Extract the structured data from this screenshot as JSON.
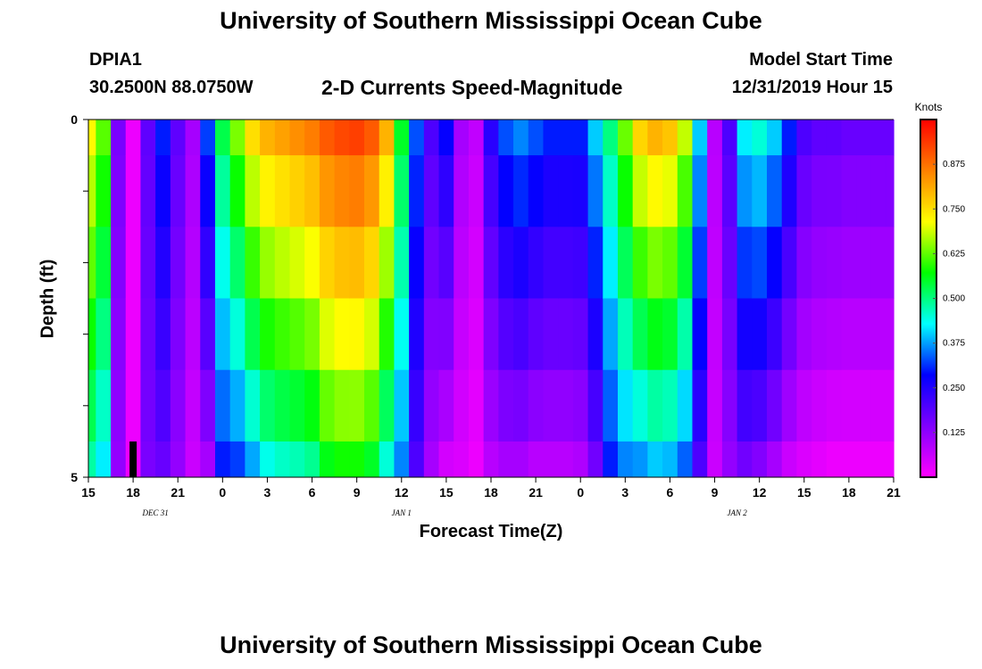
{
  "header": {
    "title": "University of Southern Mississippi Ocean Cube",
    "station_id": "DPIA1",
    "coords": "30.2500N 88.0750W",
    "subtitle": "2-D Currents Speed-Magnitude",
    "model_start_label": "Model Start Time",
    "model_start_value": "12/31/2019 Hour 15"
  },
  "footer": {
    "title": "University of Southern Mississippi Ocean Cube"
  },
  "chart_data": {
    "type": "heatmap",
    "title": "2-D Currents Speed-Magnitude",
    "xlabel": "Forecast Time(Z)",
    "ylabel": "Depth (ft)",
    "x_hours_start": 0,
    "x_hours_end": 54,
    "x_ticks": [
      "15",
      "18",
      "21",
      "0",
      "3",
      "6",
      "9",
      "12",
      "15",
      "18",
      "21",
      "0",
      "3",
      "6",
      "9",
      "12",
      "15",
      "18",
      "21"
    ],
    "date_labels": [
      {
        "text": "DEC 31",
        "hour": 4.5
      },
      {
        "text": "JAN 1",
        "hour": 21
      },
      {
        "text": "JAN 2",
        "hour": 43.5
      }
    ],
    "y_ticks": [
      "0",
      "5"
    ],
    "y_range_ft": [
      0,
      5
    ],
    "depth_layer_edges_ft": [
      0,
      0.5,
      1.5,
      2.5,
      3.5,
      4.5,
      5
    ],
    "colorbar": {
      "unit": "Knots",
      "min": 0,
      "max": 1,
      "ticks": [
        "0.125",
        "0.250",
        "0.375",
        "0.500",
        "0.625",
        "0.750",
        "0.875"
      ]
    },
    "speed_profiles_knots": [
      {
        "hour": 0,
        "surface": 0.72,
        "bottom": 0.48
      },
      {
        "hour": 1,
        "surface": 0.62,
        "bottom": 0.42
      },
      {
        "hour": 2,
        "surface": 0.15,
        "bottom": 0.12
      },
      {
        "hour": 3,
        "surface": 0.02,
        "bottom": 0.02
      },
      {
        "hour": 4,
        "surface": 0.18,
        "bottom": 0.15
      },
      {
        "hour": 5,
        "surface": 0.3,
        "bottom": 0.17
      },
      {
        "hour": 6,
        "surface": 0.18,
        "bottom": 0.12
      },
      {
        "hour": 7,
        "surface": 0.1,
        "bottom": 0.06
      },
      {
        "hour": 8,
        "surface": 0.32,
        "bottom": 0.1
      },
      {
        "hour": 9,
        "surface": 0.53,
        "bottom": 0.3
      },
      {
        "hour": 10,
        "surface": 0.64,
        "bottom": 0.32
      },
      {
        "hour": 11,
        "surface": 0.75,
        "bottom": 0.38
      },
      {
        "hour": 12,
        "surface": 0.8,
        "bottom": 0.44
      },
      {
        "hour": 13,
        "surface": 0.82,
        "bottom": 0.46
      },
      {
        "hour": 14,
        "surface": 0.84,
        "bottom": 0.47
      },
      {
        "hour": 15,
        "surface": 0.86,
        "bottom": 0.49
      },
      {
        "hour": 16,
        "surface": 0.9,
        "bottom": 0.56
      },
      {
        "hour": 17,
        "surface": 0.92,
        "bottom": 0.58
      },
      {
        "hour": 18,
        "surface": 0.93,
        "bottom": 0.58
      },
      {
        "hour": 19,
        "surface": 0.9,
        "bottom": 0.55
      },
      {
        "hour": 20,
        "surface": 0.8,
        "bottom": 0.45
      },
      {
        "hour": 21,
        "surface": 0.55,
        "bottom": 0.36
      },
      {
        "hour": 22,
        "surface": 0.33,
        "bottom": 0.2
      },
      {
        "hour": 23,
        "surface": 0.2,
        "bottom": 0.1
      },
      {
        "hour": 24,
        "surface": 0.28,
        "bottom": 0.05
      },
      {
        "hour": 25,
        "surface": 0.1,
        "bottom": 0.04
      },
      {
        "hour": 26,
        "surface": 0.07,
        "bottom": 0.02
      },
      {
        "hour": 27,
        "surface": 0.24,
        "bottom": 0.08
      },
      {
        "hour": 28,
        "surface": 0.33,
        "bottom": 0.1
      },
      {
        "hour": 29,
        "surface": 0.36,
        "bottom": 0.1
      },
      {
        "hour": 30,
        "surface": 0.33,
        "bottom": 0.08
      },
      {
        "hour": 31,
        "surface": 0.3,
        "bottom": 0.08
      },
      {
        "hour": 32,
        "surface": 0.3,
        "bottom": 0.08
      },
      {
        "hour": 33,
        "surface": 0.3,
        "bottom": 0.09
      },
      {
        "hour": 34,
        "surface": 0.4,
        "bottom": 0.16
      },
      {
        "hour": 35,
        "surface": 0.5,
        "bottom": 0.3
      },
      {
        "hour": 36,
        "surface": 0.63,
        "bottom": 0.36
      },
      {
        "hour": 37,
        "surface": 0.76,
        "bottom": 0.37
      },
      {
        "hour": 38,
        "surface": 0.8,
        "bottom": 0.4
      },
      {
        "hour": 39,
        "surface": 0.78,
        "bottom": 0.39
      },
      {
        "hour": 40,
        "surface": 0.68,
        "bottom": 0.34
      },
      {
        "hour": 41,
        "surface": 0.4,
        "bottom": 0.2
      },
      {
        "hour": 42,
        "surface": 0.08,
        "bottom": 0.06
      },
      {
        "hour": 43,
        "surface": 0.2,
        "bottom": 0.12
      },
      {
        "hour": 44,
        "surface": 0.42,
        "bottom": 0.16
      },
      {
        "hour": 45,
        "surface": 0.45,
        "bottom": 0.14
      },
      {
        "hour": 46,
        "surface": 0.4,
        "bottom": 0.1
      },
      {
        "hour": 47,
        "surface": 0.3,
        "bottom": 0.06
      },
      {
        "hour": 48,
        "surface": 0.2,
        "bottom": 0.04
      },
      {
        "hour": 49,
        "surface": 0.18,
        "bottom": 0.03
      },
      {
        "hour": 50,
        "surface": 0.18,
        "bottom": 0.02
      },
      {
        "hour": 51,
        "surface": 0.17,
        "bottom": 0.02
      },
      {
        "hour": 52,
        "surface": 0.17,
        "bottom": 0.02
      },
      {
        "hour": 53,
        "surface": 0.17,
        "bottom": 0.02
      },
      {
        "hour": 54,
        "surface": 0.17,
        "bottom": 0.02
      }
    ],
    "no_data": {
      "hour": 3,
      "depth_from_ft": 4.5,
      "depth_to_ft": 5
    }
  },
  "colors": {
    "palette": [
      "#ff00ff",
      "#8000ff",
      "#0000ff",
      "#00ffff",
      "#00ff00",
      "#ffff00",
      "#ff8000",
      "#ff0000"
    ],
    "no_data": "#000000",
    "axis": "#000000"
  }
}
